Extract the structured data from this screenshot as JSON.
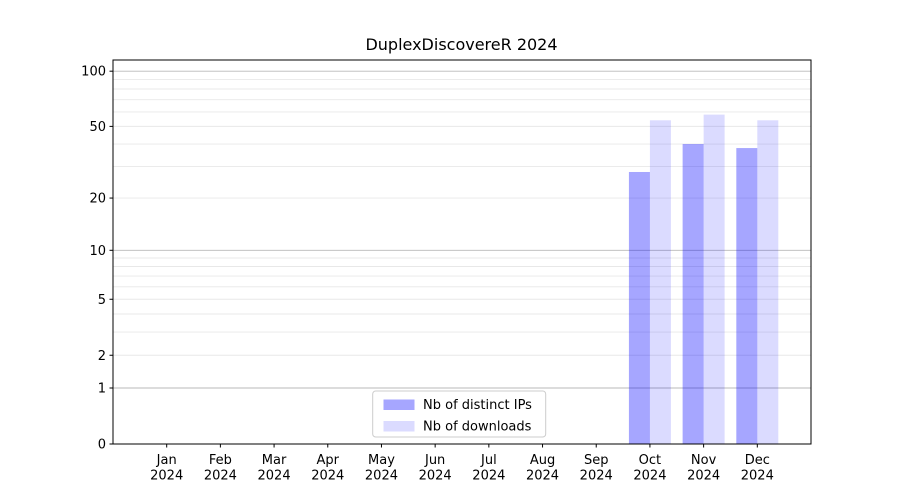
{
  "title": "DuplexDiscovereR 2024",
  "chart_data": {
    "type": "bar",
    "title": "DuplexDiscovereR 2024",
    "scale": "log1p",
    "ylim": [
      0,
      115
    ],
    "grid": true,
    "legend_position": "lower center",
    "y_ticks": [
      0,
      1,
      2,
      5,
      10,
      20,
      50,
      100
    ],
    "y_tick_labels": [
      "0",
      "1",
      "2",
      "5",
      "10",
      "20",
      "50",
      "100"
    ],
    "y_decade_lines": [
      1,
      10,
      100
    ],
    "y_minor_gridlines": [
      3,
      4,
      6,
      7,
      8,
      9,
      30,
      40,
      60,
      70,
      80,
      90
    ],
    "categories": [
      "Jan",
      "Feb",
      "Mar",
      "Apr",
      "May",
      "Jun",
      "Jul",
      "Aug",
      "Sep",
      "Oct",
      "Nov",
      "Dec"
    ],
    "year": "2024",
    "series": [
      {
        "name": "Nb of distinct IPs",
        "key": "distinct-ips",
        "color": "rgba(0,0,255,0.35)",
        "values": [
          0,
          0,
          0,
          0,
          0,
          0,
          0,
          0,
          0,
          28,
          40,
          38
        ]
      },
      {
        "name": "Nb of downloads",
        "key": "downloads",
        "color": "rgba(0,0,255,0.14)",
        "values": [
          0,
          0,
          0,
          0,
          0,
          0,
          0,
          0,
          0,
          54,
          58,
          54
        ]
      }
    ],
    "colors": {
      "gridline": "#e8e8e8",
      "gridline_decade": "#b9b9b9",
      "axis": "#000000",
      "legend_border": "#cccccc",
      "background": "#ffffff"
    }
  }
}
